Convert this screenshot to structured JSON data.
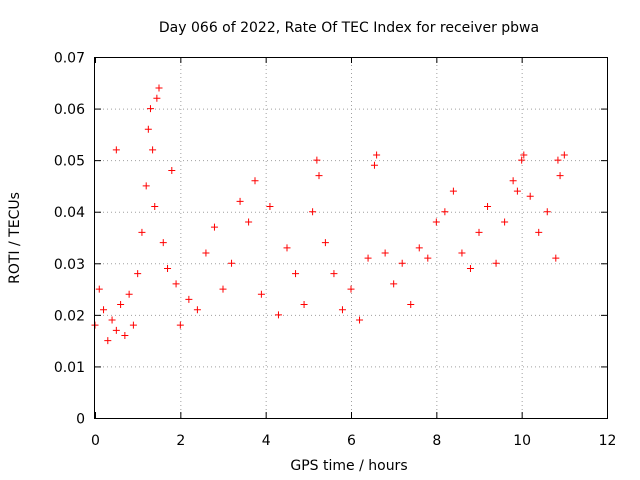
{
  "chart_data": {
    "type": "scatter",
    "title": "Day 066 of 2022, Rate Of TEC Index for receiver pbwa",
    "xlabel": "GPS time / hours",
    "ylabel": "ROTI / TECUs",
    "xlim": [
      0,
      12
    ],
    "ylim": [
      0,
      0.07
    ],
    "x_ticks": [
      0,
      2,
      4,
      6,
      8,
      10,
      12
    ],
    "x_tick_labels": [
      "0",
      "2",
      "4",
      "6",
      "8",
      "10",
      "12"
    ],
    "y_ticks": [
      0,
      0.01,
      0.02,
      0.03,
      0.04,
      0.05,
      0.06,
      0.07
    ],
    "y_tick_labels": [
      "0",
      "0.01",
      "0.02",
      "0.03",
      "0.04",
      "0.05",
      "0.06",
      "0.07"
    ],
    "grid": true,
    "marker": "+",
    "series": [
      {
        "name": "ROTI",
        "color": "#ff0000",
        "x": [
          0.0,
          0.1,
          0.2,
          0.3,
          0.4,
          0.5,
          0.6,
          0.7,
          0.8,
          0.9,
          1.0,
          1.1,
          1.2,
          1.25,
          1.3,
          1.35,
          1.4,
          1.45,
          1.5,
          1.6,
          1.7,
          1.8,
          1.9,
          2.0,
          2.2,
          2.4,
          2.6,
          2.8,
          3.0,
          3.2,
          3.4,
          3.6,
          3.75,
          3.9,
          4.1,
          4.3,
          4.5,
          4.7,
          4.9,
          5.1,
          5.2,
          5.25,
          5.4,
          5.6,
          5.8,
          6.0,
          6.2,
          6.4,
          6.55,
          6.6,
          6.8,
          7.0,
          7.2,
          7.4,
          7.6,
          7.8,
          8.0,
          8.2,
          8.4,
          8.6,
          8.8,
          9.0,
          9.2,
          9.4,
          9.6,
          9.8,
          9.9,
          10.0,
          10.05,
          10.2,
          10.4,
          10.6,
          10.8,
          10.85,
          10.9,
          11.0,
          0.5
        ],
        "values": [
          0.018,
          0.025,
          0.021,
          0.015,
          0.019,
          0.017,
          0.022,
          0.016,
          0.024,
          0.018,
          0.028,
          0.036,
          0.045,
          0.056,
          0.06,
          0.052,
          0.041,
          0.062,
          0.064,
          0.034,
          0.029,
          0.048,
          0.026,
          0.018,
          0.023,
          0.021,
          0.032,
          0.037,
          0.025,
          0.03,
          0.042,
          0.038,
          0.046,
          0.024,
          0.041,
          0.02,
          0.033,
          0.028,
          0.022,
          0.04,
          0.05,
          0.047,
          0.034,
          0.028,
          0.021,
          0.025,
          0.019,
          0.031,
          0.049,
          0.051,
          0.032,
          0.026,
          0.03,
          0.022,
          0.033,
          0.031,
          0.038,
          0.04,
          0.044,
          0.032,
          0.029,
          0.036,
          0.041,
          0.03,
          0.038,
          0.046,
          0.044,
          0.05,
          0.051,
          0.043,
          0.036,
          0.04,
          0.031,
          0.05,
          0.047,
          0.051,
          0.052
        ]
      }
    ]
  }
}
